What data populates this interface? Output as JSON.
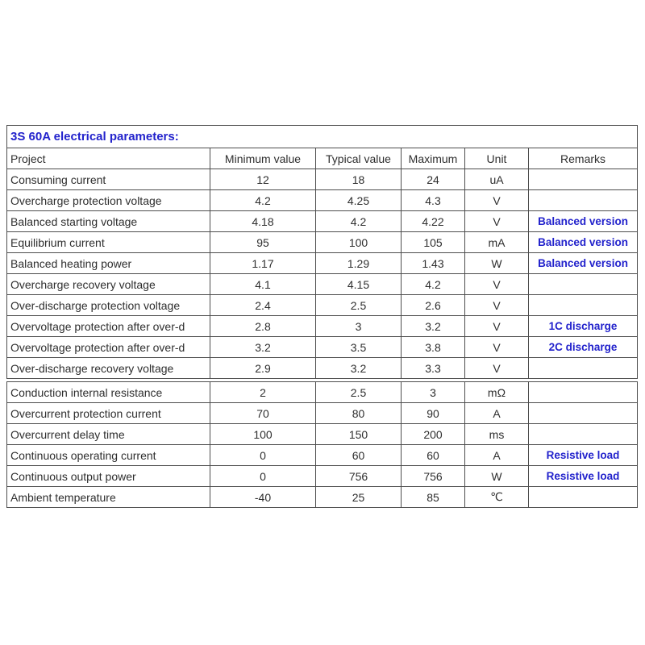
{
  "title": "3S 60A electrical parameters:",
  "colors": {
    "accent_blue": "#2222cc",
    "border": "#4d4d4d",
    "text": "#2e2e2e",
    "background": "#ffffff"
  },
  "table": {
    "headers": {
      "project": "Project",
      "min": "Minimum value",
      "typ": "Typical value",
      "max": "Maximum",
      "unit": "Unit",
      "remark": "Remarks"
    },
    "sections": [
      {
        "rows": [
          {
            "project": "Consuming current",
            "min": "12",
            "typ": "18",
            "max": "24",
            "unit": "uA",
            "remark": ""
          },
          {
            "project": "Overcharge protection voltage",
            "min": "4.2",
            "typ": "4.25",
            "max": "4.3",
            "unit": "V",
            "remark": ""
          },
          {
            "project": "Balanced starting voltage",
            "min": "4.18",
            "typ": "4.2",
            "max": "4.22",
            "unit": "V",
            "remark": "Balanced version"
          },
          {
            "project": "Equilibrium current",
            "min": "95",
            "typ": "100",
            "max": "105",
            "unit": "mA",
            "remark": "Balanced version"
          },
          {
            "project": "Balanced heating power",
            "min": "1.17",
            "typ": "1.29",
            "max": "1.43",
            "unit": "W",
            "remark": "Balanced version"
          },
          {
            "project": "Overcharge recovery voltage",
            "min": "4.1",
            "typ": "4.15",
            "max": "4.2",
            "unit": "V",
            "remark": ""
          },
          {
            "project": "Over-discharge protection voltage",
            "min": "2.4",
            "typ": "2.5",
            "max": "2.6",
            "unit": "V",
            "remark": ""
          },
          {
            "project": "Overvoltage protection after over-d",
            "min": "2.8",
            "typ": "3",
            "max": "3.2",
            "unit": "V",
            "remark": "1C discharge"
          },
          {
            "project": "Overvoltage protection after over-d",
            "min": "3.2",
            "typ": "3.5",
            "max": "3.8",
            "unit": "V",
            "remark": "2C discharge"
          },
          {
            "project": "Over-discharge recovery voltage",
            "min": "2.9",
            "typ": "3.2",
            "max": "3.3",
            "unit": "V",
            "remark": ""
          }
        ]
      },
      {
        "rows": [
          {
            "project": "Conduction internal resistance",
            "min": "2",
            "typ": "2.5",
            "max": "3",
            "unit": "mΩ",
            "remark": ""
          },
          {
            "project": "Overcurrent protection current",
            "min": "70",
            "typ": "80",
            "max": "90",
            "unit": "A",
            "remark": ""
          },
          {
            "project": "Overcurrent delay time",
            "min": "100",
            "typ": "150",
            "max": "200",
            "unit": "ms",
            "remark": ""
          },
          {
            "project": "Continuous operating current",
            "min": "0",
            "typ": "60",
            "max": "60",
            "unit": "A",
            "remark": "Resistive load"
          },
          {
            "project": "Continuous output power",
            "min": "0",
            "typ": "756",
            "max": "756",
            "unit": "W",
            "remark": "Resistive load"
          },
          {
            "project": "Ambient temperature",
            "min": "-40",
            "typ": "25",
            "max": "85",
            "unit": "℃",
            "remark": ""
          }
        ]
      }
    ]
  }
}
